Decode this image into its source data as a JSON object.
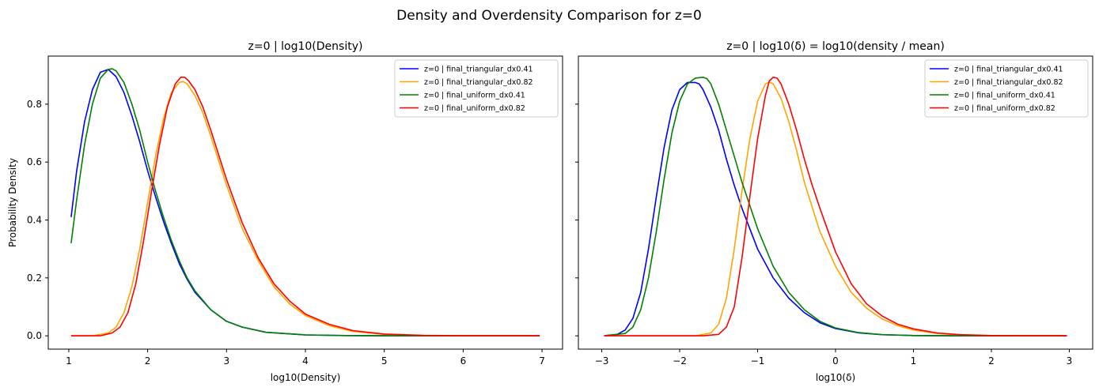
{
  "figure": {
    "suptitle": "Density and Overdensity Comparison for z=0"
  },
  "chart_data": [
    {
      "type": "line",
      "title": "z=0 | log10(Density)",
      "xlabel": "log10(Density)",
      "ylabel": "Probability Density",
      "xlim": [
        0.74,
        7.26
      ],
      "ylim": [
        -0.046,
        0.966
      ],
      "xticks": [
        1,
        2,
        3,
        4,
        5,
        6,
        7
      ],
      "xtick_labels": [
        "1",
        "2",
        "3",
        "4",
        "5",
        "6",
        "7"
      ],
      "yticks": [
        0.0,
        0.2,
        0.4,
        0.6,
        0.8
      ],
      "ytick_labels": [
        "0.0",
        "0.2",
        "0.4",
        "0.6",
        "0.8"
      ],
      "legend": "top-right",
      "grid": false,
      "series": [
        {
          "name": "z=0 | final_triangular_dx0.41",
          "color": "#0000ff",
          "x": [
            1.03,
            1.1,
            1.2,
            1.3,
            1.4,
            1.5,
            1.6,
            1.7,
            1.8,
            1.9,
            2.0,
            2.1,
            2.2,
            2.3,
            2.4,
            2.5,
            2.6,
            2.8,
            3.0,
            3.2,
            3.5,
            4.0,
            4.5,
            5.0,
            6.0,
            6.97
          ],
          "y": [
            0.41,
            0.57,
            0.74,
            0.85,
            0.91,
            0.92,
            0.895,
            0.84,
            0.76,
            0.67,
            0.57,
            0.48,
            0.395,
            0.32,
            0.25,
            0.195,
            0.15,
            0.09,
            0.05,
            0.03,
            0.012,
            0.003,
            0.001,
            0.0,
            0.0,
            0.0
          ]
        },
        {
          "name": "z=0 | final_triangular_dx0.82",
          "color": "#ffa500",
          "x": [
            1.03,
            1.3,
            1.5,
            1.6,
            1.7,
            1.8,
            1.9,
            2.0,
            2.1,
            2.2,
            2.3,
            2.4,
            2.45,
            2.5,
            2.6,
            2.7,
            2.8,
            3.0,
            3.2,
            3.4,
            3.6,
            3.8,
            4.0,
            4.3,
            4.6,
            5.0,
            5.5,
            6.0,
            6.97
          ],
          "y": [
            0.0,
            0.0,
            0.01,
            0.03,
            0.08,
            0.17,
            0.3,
            0.46,
            0.62,
            0.75,
            0.84,
            0.875,
            0.878,
            0.87,
            0.83,
            0.77,
            0.69,
            0.52,
            0.37,
            0.26,
            0.17,
            0.11,
            0.07,
            0.035,
            0.015,
            0.005,
            0.001,
            0.0,
            0.0
          ]
        },
        {
          "name": "z=0 | final_uniform_dx0.41",
          "color": "#008000",
          "x": [
            1.03,
            1.1,
            1.2,
            1.3,
            1.4,
            1.5,
            1.55,
            1.6,
            1.7,
            1.8,
            1.9,
            2.0,
            2.1,
            2.2,
            2.3,
            2.4,
            2.5,
            2.6,
            2.8,
            3.0,
            3.2,
            3.5,
            4.0,
            4.5,
            5.0,
            6.0,
            6.97
          ],
          "y": [
            0.32,
            0.47,
            0.66,
            0.8,
            0.89,
            0.92,
            0.922,
            0.915,
            0.875,
            0.8,
            0.71,
            0.6,
            0.5,
            0.41,
            0.33,
            0.26,
            0.2,
            0.155,
            0.09,
            0.05,
            0.03,
            0.012,
            0.003,
            0.001,
            0.0,
            0.0,
            0.0
          ]
        },
        {
          "name": "z=0 | final_uniform_dx0.82",
          "color": "#ff0000",
          "x": [
            1.03,
            1.4,
            1.55,
            1.65,
            1.75,
            1.85,
            1.95,
            2.05,
            2.15,
            2.25,
            2.35,
            2.42,
            2.47,
            2.52,
            2.6,
            2.7,
            2.8,
            3.0,
            3.2,
            3.4,
            3.6,
            3.8,
            4.0,
            4.3,
            4.6,
            5.0,
            5.5,
            6.0,
            6.97
          ],
          "y": [
            0.0,
            0.0,
            0.01,
            0.03,
            0.08,
            0.18,
            0.33,
            0.5,
            0.66,
            0.79,
            0.87,
            0.893,
            0.893,
            0.88,
            0.85,
            0.79,
            0.71,
            0.54,
            0.39,
            0.27,
            0.18,
            0.12,
            0.075,
            0.04,
            0.018,
            0.006,
            0.0015,
            0.0,
            0.0
          ]
        }
      ]
    },
    {
      "type": "line",
      "title": "z=0 | log10(δ) = log10(density / mean)",
      "xlabel": "log10(δ)",
      "ylabel": "",
      "xlim": [
        -3.3,
        3.3
      ],
      "ylim": [
        -0.046,
        0.966
      ],
      "xticks": [
        -3,
        -2,
        -1,
        0,
        1,
        2,
        3
      ],
      "xtick_labels": [
        "−3",
        "−2",
        "−1",
        "0",
        "1",
        "2",
        "3"
      ],
      "yticks": [
        0.0,
        0.2,
        0.4,
        0.6,
        0.8
      ],
      "ytick_labels": [
        "",
        "",
        "",
        "",
        ""
      ],
      "legend": "top-right",
      "grid": false,
      "series": [
        {
          "name": "z=0 | final_triangular_dx0.41",
          "color": "#0000ff",
          "x": [
            -2.97,
            -2.8,
            -2.7,
            -2.6,
            -2.5,
            -2.4,
            -2.3,
            -2.2,
            -2.1,
            -2.0,
            -1.9,
            -1.8,
            -1.75,
            -1.7,
            -1.6,
            -1.5,
            -1.4,
            -1.3,
            -1.2,
            -1.0,
            -0.8,
            -0.6,
            -0.4,
            -0.2,
            0.0,
            0.3,
            0.6,
            1.0,
            1.5,
            2.0,
            2.97
          ],
          "y": [
            0.0,
            0.005,
            0.02,
            0.06,
            0.15,
            0.3,
            0.48,
            0.65,
            0.78,
            0.85,
            0.875,
            0.875,
            0.87,
            0.85,
            0.79,
            0.71,
            0.61,
            0.52,
            0.44,
            0.3,
            0.2,
            0.13,
            0.08,
            0.045,
            0.025,
            0.01,
            0.004,
            0.001,
            0.0,
            0.0,
            0.0
          ]
        },
        {
          "name": "z=0 | final_triangular_dx0.82",
          "color": "#ffa500",
          "x": [
            -2.97,
            -1.8,
            -1.6,
            -1.5,
            -1.4,
            -1.3,
            -1.2,
            -1.1,
            -1.0,
            -0.9,
            -0.85,
            -0.8,
            -0.7,
            -0.6,
            -0.5,
            -0.4,
            -0.2,
            0.0,
            0.2,
            0.4,
            0.6,
            0.8,
            1.0,
            1.3,
            1.6,
            2.0,
            2.5,
            2.97
          ],
          "y": [
            0.0,
            0.0,
            0.01,
            0.04,
            0.13,
            0.3,
            0.5,
            0.68,
            0.81,
            0.87,
            0.876,
            0.87,
            0.82,
            0.74,
            0.64,
            0.53,
            0.36,
            0.24,
            0.15,
            0.095,
            0.058,
            0.035,
            0.02,
            0.008,
            0.003,
            0.001,
            0.0,
            0.0
          ]
        },
        {
          "name": "z=0 | final_uniform_dx0.41",
          "color": "#008000",
          "x": [
            -2.97,
            -2.7,
            -2.6,
            -2.5,
            -2.4,
            -2.3,
            -2.2,
            -2.1,
            -2.0,
            -1.9,
            -1.8,
            -1.7,
            -1.65,
            -1.6,
            -1.5,
            -1.4,
            -1.3,
            -1.2,
            -1.1,
            -1.0,
            -0.8,
            -0.6,
            -0.4,
            -0.2,
            0.0,
            0.3,
            0.6,
            1.0,
            1.5,
            2.0,
            2.97
          ],
          "y": [
            0.0,
            0.008,
            0.03,
            0.09,
            0.2,
            0.36,
            0.54,
            0.7,
            0.81,
            0.87,
            0.89,
            0.893,
            0.888,
            0.87,
            0.8,
            0.71,
            0.62,
            0.53,
            0.45,
            0.37,
            0.24,
            0.15,
            0.09,
            0.05,
            0.027,
            0.011,
            0.004,
            0.001,
            0.0,
            0.0,
            0.0
          ]
        },
        {
          "name": "z=0 | final_uniform_dx0.82",
          "color": "#ff0000",
          "x": [
            -2.97,
            -1.7,
            -1.5,
            -1.4,
            -1.3,
            -1.2,
            -1.1,
            -1.0,
            -0.9,
            -0.85,
            -0.8,
            -0.75,
            -0.7,
            -0.6,
            -0.5,
            -0.4,
            -0.3,
            -0.2,
            0.0,
            0.2,
            0.4,
            0.6,
            0.8,
            1.0,
            1.3,
            1.6,
            2.0,
            2.5,
            2.97
          ],
          "y": [
            0.0,
            0.0,
            0.005,
            0.03,
            0.1,
            0.27,
            0.48,
            0.68,
            0.83,
            0.88,
            0.893,
            0.89,
            0.87,
            0.8,
            0.71,
            0.61,
            0.52,
            0.44,
            0.29,
            0.18,
            0.11,
            0.068,
            0.04,
            0.024,
            0.01,
            0.004,
            0.001,
            0.0,
            0.0
          ]
        }
      ]
    }
  ]
}
